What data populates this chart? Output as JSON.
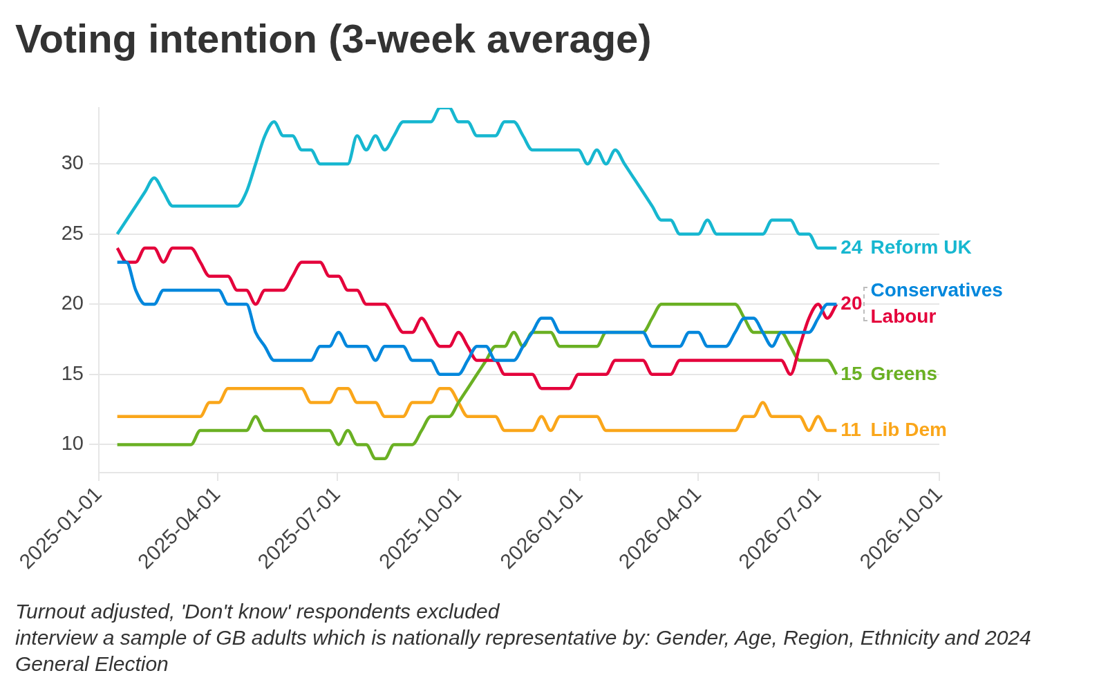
{
  "chart_data": {
    "type": "line",
    "title": "Voting intention (3-week average)",
    "annotations": [
      "Turnout adjusted, 'Don't know' respondents excluded",
      "interview a sample of GB adults which is nationally representative by: Gender, Age, Region, Ethnicity and 2024 General Election"
    ],
    "x": [
      "2025-01-15",
      "2025-01-22",
      "2025-01-29",
      "2025-02-05",
      "2025-02-12",
      "2025-02-19",
      "2025-02-26",
      "2025-03-05",
      "2025-03-12",
      "2025-03-19",
      "2025-03-26",
      "2025-04-02",
      "2025-04-09",
      "2025-04-16",
      "2025-04-23",
      "2025-04-30",
      "2025-05-07",
      "2025-05-14",
      "2025-05-21",
      "2025-05-28",
      "2025-06-04",
      "2025-06-11",
      "2025-06-18",
      "2025-06-25",
      "2025-07-02",
      "2025-07-09",
      "2025-07-16",
      "2025-07-23",
      "2025-07-30",
      "2025-08-06",
      "2025-08-13",
      "2025-08-20",
      "2025-08-27",
      "2025-09-03",
      "2025-09-10",
      "2025-09-17",
      "2025-09-24",
      "2025-10-01",
      "2025-10-08",
      "2025-10-15",
      "2025-10-22",
      "2025-10-29",
      "2025-11-05",
      "2025-11-12",
      "2025-11-19",
      "2025-11-26",
      "2025-12-03",
      "2025-12-10",
      "2025-12-17",
      "2025-12-24",
      "2025-12-31",
      "2026-01-07",
      "2026-01-14",
      "2026-01-21",
      "2026-01-28",
      "2026-02-04",
      "2026-02-11",
      "2026-02-18",
      "2026-02-25",
      "2026-03-04",
      "2026-03-11",
      "2026-03-18",
      "2026-03-25",
      "2026-04-01",
      "2026-04-08",
      "2026-04-15",
      "2026-04-22",
      "2026-04-29",
      "2026-05-06",
      "2026-05-13",
      "2026-05-20",
      "2026-05-27",
      "2026-06-03",
      "2026-06-10",
      "2026-06-17",
      "2026-06-24",
      "2026-07-01",
      "2026-07-08",
      "2026-07-15"
    ],
    "xlim": [
      "2025-01-01",
      "2026-10-01"
    ],
    "xticks": [
      "2025-01-01",
      "2025-04-01",
      "2025-07-01",
      "2025-10-01",
      "2026-01-01",
      "2026-04-01",
      "2026-07-01",
      "2026-10-01"
    ],
    "ylim": [
      8,
      34
    ],
    "yticks": [
      10,
      15,
      20,
      25,
      30
    ],
    "grid": "y",
    "series": [
      {
        "name": "Reform UK",
        "color": "#17b7d0",
        "values": [
          25,
          26,
          27,
          28,
          29,
          28,
          27,
          27,
          27,
          27,
          27,
          27,
          27,
          27,
          28,
          30,
          32,
          33,
          32,
          32,
          31,
          31,
          30,
          30,
          30,
          30,
          32,
          31,
          32,
          31,
          32,
          33,
          33,
          33,
          33,
          34,
          34,
          33,
          33,
          32,
          32,
          32,
          33,
          33,
          32,
          31,
          31,
          31,
          31,
          31,
          31,
          30,
          31,
          30,
          31,
          30,
          29,
          28,
          27,
          26,
          26,
          25,
          25,
          25,
          26,
          25,
          25,
          25,
          25,
          25,
          25,
          26,
          26,
          26,
          25,
          25,
          24,
          24,
          24
        ],
        "value_labels": [
          null,
          null,
          null,
          null,
          null,
          null,
          null,
          null,
          null,
          null,
          null,
          null,
          null,
          null,
          null,
          null,
          null,
          null,
          null,
          null,
          null,
          null,
          null,
          null,
          null,
          null,
          null,
          null,
          null,
          null,
          null,
          null,
          null,
          null,
          null,
          null,
          null,
          null,
          null,
          null,
          null,
          null,
          null,
          null,
          null,
          null,
          null,
          null,
          null,
          null,
          null,
          null,
          null,
          null,
          null,
          null,
          null,
          null,
          null,
          null,
          null,
          null,
          null,
          null,
          null,
          null,
          null,
          null,
          null,
          null,
          null,
          null,
          null,
          null,
          null,
          null,
          null,
          null,
          "24"
        ]
      },
      {
        "name": "Conservatives",
        "color": "#0087dc",
        "values": [
          23,
          23,
          21,
          20,
          20,
          21,
          21,
          21,
          21,
          21,
          21,
          21,
          20,
          20,
          20,
          18,
          17,
          16,
          16,
          16,
          16,
          16,
          17,
          17,
          18,
          17,
          17,
          17,
          16,
          17,
          17,
          17,
          16,
          16,
          16,
          15,
          15,
          15,
          16,
          17,
          17,
          16,
          16,
          16,
          17,
          18,
          19,
          19,
          18,
          18,
          18,
          18,
          18,
          18,
          18,
          18,
          18,
          18,
          17,
          17,
          17,
          17,
          18,
          18,
          17,
          17,
          17,
          18,
          19,
          19,
          18,
          17,
          18,
          18,
          18,
          18,
          19,
          20,
          20
        ]
      },
      {
        "name": "Labour",
        "color": "#e4003b",
        "values": [
          24,
          23,
          23,
          24,
          24,
          23,
          24,
          24,
          24,
          23,
          22,
          22,
          22,
          21,
          21,
          20,
          21,
          21,
          21,
          22,
          23,
          23,
          23,
          22,
          22,
          21,
          21,
          20,
          20,
          20,
          19,
          18,
          18,
          19,
          18,
          17,
          17,
          18,
          17,
          16,
          16,
          16,
          15,
          15,
          15,
          15,
          14,
          14,
          14,
          14,
          15,
          15,
          15,
          15,
          16,
          16,
          16,
          16,
          15,
          15,
          15,
          16,
          16,
          16,
          16,
          16,
          16,
          16,
          16,
          16,
          16,
          16,
          16,
          15,
          17,
          19,
          20,
          19,
          20
        ],
        "value_labels": [
          null,
          null,
          null,
          null,
          null,
          null,
          null,
          null,
          null,
          null,
          null,
          null,
          null,
          null,
          null,
          null,
          null,
          null,
          null,
          null,
          null,
          null,
          null,
          null,
          null,
          null,
          null,
          null,
          null,
          null,
          null,
          null,
          null,
          null,
          null,
          null,
          null,
          null,
          null,
          null,
          null,
          null,
          null,
          null,
          null,
          null,
          null,
          null,
          null,
          null,
          null,
          null,
          null,
          null,
          null,
          null,
          null,
          null,
          null,
          null,
          null,
          null,
          null,
          null,
          null,
          null,
          null,
          null,
          null,
          null,
          null,
          null,
          null,
          null,
          null,
          null,
          null,
          null,
          "20"
        ]
      },
      {
        "name": "Greens",
        "color": "#6ab023",
        "values": [
          10,
          10,
          10,
          10,
          10,
          10,
          10,
          10,
          10,
          11,
          11,
          11,
          11,
          11,
          11,
          12,
          11,
          11,
          11,
          11,
          11,
          11,
          11,
          11,
          10,
          11,
          10,
          10,
          9,
          9,
          10,
          10,
          10,
          11,
          12,
          12,
          12,
          13,
          14,
          15,
          16,
          17,
          17,
          18,
          17,
          18,
          18,
          18,
          17,
          17,
          17,
          17,
          17,
          18,
          18,
          18,
          18,
          18,
          19,
          20,
          20,
          20,
          20,
          20,
          20,
          20,
          20,
          20,
          19,
          18,
          18,
          18,
          18,
          17,
          16,
          16,
          16,
          16,
          15
        ],
        "value_labels": [
          null,
          null,
          null,
          null,
          null,
          null,
          null,
          null,
          null,
          null,
          null,
          null,
          null,
          null,
          null,
          null,
          null,
          null,
          null,
          null,
          null,
          null,
          null,
          null,
          null,
          null,
          null,
          null,
          null,
          null,
          null,
          null,
          null,
          null,
          null,
          null,
          null,
          null,
          null,
          null,
          null,
          null,
          null,
          null,
          null,
          null,
          null,
          null,
          null,
          null,
          null,
          null,
          null,
          null,
          null,
          null,
          null,
          null,
          null,
          null,
          null,
          null,
          null,
          null,
          null,
          null,
          null,
          null,
          null,
          null,
          null,
          null,
          null,
          null,
          null,
          null,
          null,
          null,
          "15"
        ]
      },
      {
        "name": "Lib Dem",
        "color": "#faa61a",
        "values": [
          12,
          12,
          12,
          12,
          12,
          12,
          12,
          12,
          12,
          12,
          13,
          13,
          14,
          14,
          14,
          14,
          14,
          14,
          14,
          14,
          14,
          13,
          13,
          13,
          14,
          14,
          13,
          13,
          13,
          12,
          12,
          12,
          13,
          13,
          13,
          14,
          14,
          13,
          12,
          12,
          12,
          12,
          11,
          11,
          11,
          11,
          12,
          11,
          12,
          12,
          12,
          12,
          12,
          11,
          11,
          11,
          11,
          11,
          11,
          11,
          11,
          11,
          11,
          11,
          11,
          11,
          11,
          11,
          12,
          12,
          13,
          12,
          12,
          12,
          12,
          11,
          12,
          11,
          11
        ],
        "value_labels": [
          null,
          null,
          null,
          null,
          null,
          null,
          null,
          null,
          null,
          null,
          null,
          null,
          null,
          null,
          null,
          null,
          null,
          null,
          null,
          null,
          null,
          null,
          null,
          null,
          null,
          null,
          null,
          null,
          null,
          null,
          null,
          null,
          null,
          null,
          null,
          null,
          null,
          null,
          null,
          null,
          null,
          null,
          null,
          null,
          null,
          null,
          null,
          null,
          null,
          null,
          null,
          null,
          null,
          null,
          null,
          null,
          null,
          null,
          null,
          null,
          null,
          null,
          null,
          null,
          null,
          null,
          null,
          null,
          null,
          null,
          null,
          null,
          null,
          null,
          null,
          null,
          null,
          null,
          "11"
        ]
      }
    ]
  }
}
